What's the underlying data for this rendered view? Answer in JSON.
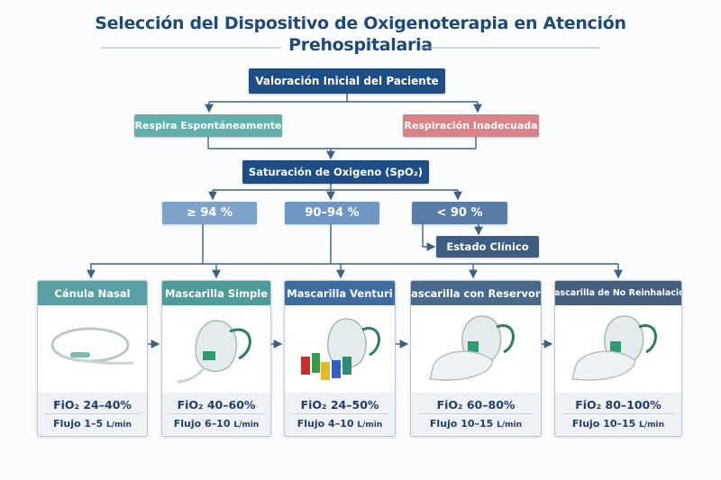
{
  "title": {
    "line1": "Selección del Dispositivo de Oxigenoterapia en Atención",
    "line2": "Prehospitalaria"
  },
  "nodes": {
    "initial": "Valoración Inicial del Paciente",
    "spontaneous": "Respira Espontáneamente",
    "inadequate": "Respiración Inadecuada",
    "saturation": "Saturación de Oxigeno (SpO₂)",
    "sat_high": "≥ 94 %",
    "sat_mid": "90–94 %",
    "sat_low": "< 90 %",
    "clinical": "Estado Clínico"
  },
  "devices": [
    {
      "name": "Cánula Nasal",
      "fio2": "FiO₂ 24–40%",
      "flow_label": "Flujo 1–5",
      "flow_unit": "L/min",
      "color": "#5a9fa3",
      "icon": "nasal-cannula"
    },
    {
      "name": "Mascarilla Simple",
      "fio2": "FiO₂ 40–60%",
      "flow_label": "Flujo 6–10",
      "flow_unit": "L/min",
      "color": "#4f9b97",
      "icon": "simple-mask"
    },
    {
      "name": "Mascarilla Venturi",
      "fio2": "FiO₂ 24–50%",
      "flow_label": "Flujo 4–10",
      "flow_unit": "L/min",
      "color": "#3f6c9e",
      "icon": "venturi-mask"
    },
    {
      "name": "Mascarilla con Reservorio",
      "fio2": "FiO₂ 60–80%",
      "flow_label": "Flujo 10–15",
      "flow_unit": "L/min",
      "color": "#4a6a8c",
      "icon": "reservoir-mask"
    },
    {
      "name": "Mascarilla de No Reinhalación",
      "fio2": "FiO₂ 80–100%",
      "flow_label": "Flujo 10–15",
      "flow_unit": "L/min",
      "color": "#465f7c",
      "icon": "non-rebreather-mask"
    }
  ],
  "colors": {
    "navy": "#1f4e86",
    "teal": "#5fb0ae",
    "pink": "#d98388",
    "line": "#40607f"
  }
}
